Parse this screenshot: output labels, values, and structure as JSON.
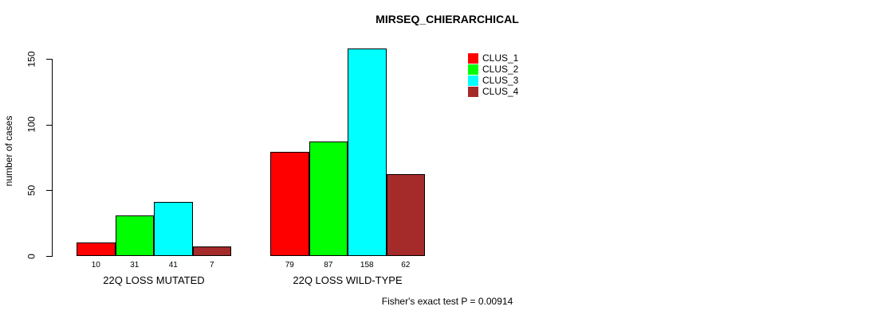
{
  "chart_data": {
    "type": "bar",
    "title": "MIRSEQ_CHIERARCHICAL",
    "ylabel": "number of cases",
    "xlabel": "",
    "categories": [
      "22Q LOSS MUTATED",
      "22Q LOSS WILD-TYPE"
    ],
    "series": [
      {
        "name": "CLUS_1",
        "color": "#FF0000",
        "values": [
          10,
          79
        ]
      },
      {
        "name": "CLUS_2",
        "color": "#00FF00",
        "values": [
          31,
          87
        ]
      },
      {
        "name": "CLUS_3",
        "color": "#00FFFF",
        "values": [
          41,
          158
        ]
      },
      {
        "name": "CLUS_4",
        "color": "#A52A2A",
        "values": [
          7,
          62
        ]
      }
    ],
    "yticks": [
      0,
      50,
      100,
      150
    ],
    "ylim": [
      0,
      160
    ],
    "grid": false,
    "bar_labels": true,
    "legend_position": "top-right",
    "annotation": "Fisher's exact test P = 0.00914"
  }
}
